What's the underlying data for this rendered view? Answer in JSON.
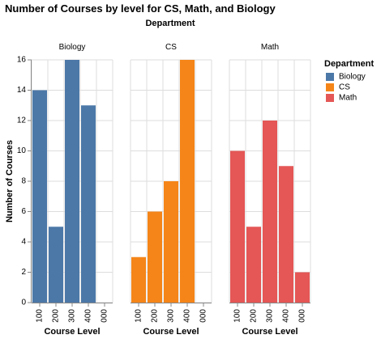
{
  "chart_data": {
    "type": "bar",
    "title": "Number of Courses by level for CS, Math, and Biology",
    "facet_header": "Department",
    "xlabel": "Course Level",
    "ylabel": "Number of Courses",
    "ylim": [
      0,
      16
    ],
    "yticks": [
      0,
      2,
      4,
      6,
      8,
      10,
      12,
      14,
      16
    ],
    "grid": true,
    "legend_position": "right",
    "legend_title": "Department",
    "categories": [
      "100",
      "200",
      "300",
      "400",
      "000"
    ],
    "series": [
      {
        "name": "Biology",
        "color": "#4c78a8",
        "values": [
          14,
          5,
          16,
          13,
          0
        ]
      },
      {
        "name": "CS",
        "color": "#f58518",
        "values": [
          3,
          6,
          8,
          16,
          0
        ]
      },
      {
        "name": "Math",
        "color": "#e45756",
        "values": [
          10,
          5,
          12,
          9,
          2
        ]
      }
    ]
  }
}
